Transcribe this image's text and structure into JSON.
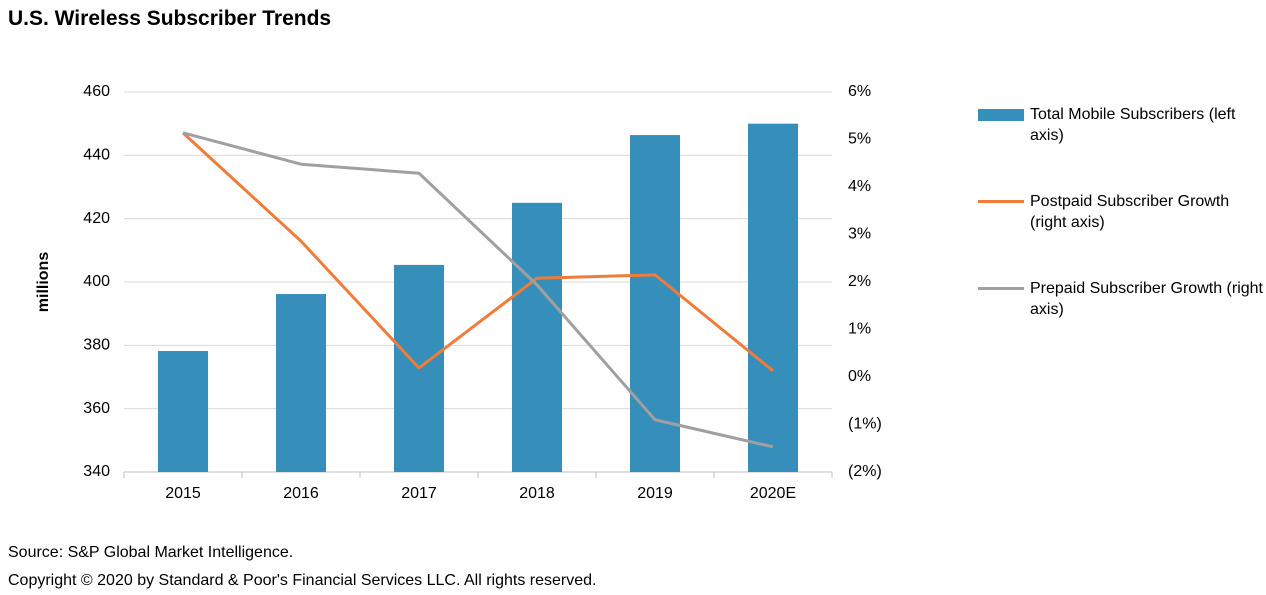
{
  "chart_data": {
    "type": "bar",
    "title": "U.S. Wireless Subscriber Trends",
    "y_label": "millions",
    "categories": [
      "2015",
      "2016",
      "2017",
      "2018",
      "2019",
      "2020E"
    ],
    "series": [
      {
        "name": "Total Mobile Subscribers (left axis)",
        "type": "bar",
        "color": "#358fba",
        "values": [
          378.2,
          396.2,
          405.4,
          425,
          446.4,
          450
        ]
      },
      {
        "name": "Postpaid Subscriber Growth (right axis)",
        "type": "line",
        "axis": "y2",
        "color": "#f07c3a",
        "values": [
          5.14,
          2.86,
          0.19,
          2.08,
          2.15,
          0.13
        ]
      },
      {
        "name": "Prepaid Subscriber Growth (right axis)",
        "type": "line",
        "axis": "y2",
        "color": "#a0a0a0",
        "values": [
          5.14,
          4.48,
          4.29,
          1.94,
          -0.9,
          -1.47
        ]
      }
    ],
    "ylim": [
      340,
      460
    ],
    "yticks": [
      340,
      360,
      380,
      400,
      420,
      440,
      460
    ],
    "y2lim": [
      -2,
      6
    ],
    "y2ticks": [
      {
        "value": -2,
        "label": "(2%)"
      },
      {
        "value": -1,
        "label": "(1%)"
      },
      {
        "value": 0,
        "label": "0%"
      },
      {
        "value": 1,
        "label": "1%"
      },
      {
        "value": 2,
        "label": "2%"
      },
      {
        "value": 3,
        "label": "3%"
      },
      {
        "value": 4,
        "label": "4%"
      },
      {
        "value": 5,
        "label": "5%"
      },
      {
        "value": 6,
        "label": "6%"
      }
    ],
    "grid": true,
    "notes": [
      "Source: S&P Global Market Intelligence.",
      "Copyright © 2020 by Standard & Poor's Financial Services LLC. All rights reserved."
    ]
  }
}
